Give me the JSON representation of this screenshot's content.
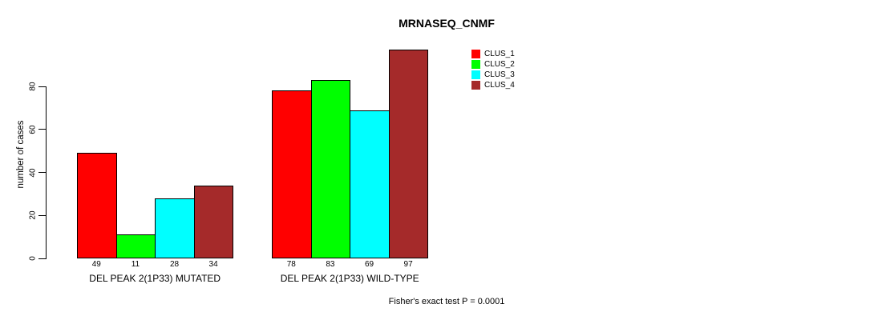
{
  "chart_data": {
    "type": "bar",
    "title": "MRNASEQ_CNMF",
    "ylabel": "number of cases",
    "xlabel": "",
    "ylim": [
      0,
      80
    ],
    "yticks": [
      0,
      20,
      40,
      60,
      80
    ],
    "categories": [
      "DEL PEAK 2(1P33) MUTATED",
      "DEL PEAK 2(1P33) WILD-TYPE"
    ],
    "series": [
      {
        "name": "CLUS_1",
        "color": "#FF0000",
        "values": [
          49,
          78
        ]
      },
      {
        "name": "CLUS_2",
        "color": "#00FF00",
        "values": [
          11,
          83
        ]
      },
      {
        "name": "CLUS_3",
        "color": "#00FFFF",
        "values": [
          28,
          69
        ]
      },
      {
        "name": "CLUS_4",
        "color": "#A52A2A",
        "values": [
          34,
          97
        ]
      }
    ],
    "legend_position": "top-right",
    "grid": false,
    "bar_value_labels_shown": true,
    "annotation": "Fisher's exact test P = 0.0001",
    "colors": {
      "bar_border": "#000000",
      "text": "#000000",
      "background": "#FFFFFF"
    }
  }
}
